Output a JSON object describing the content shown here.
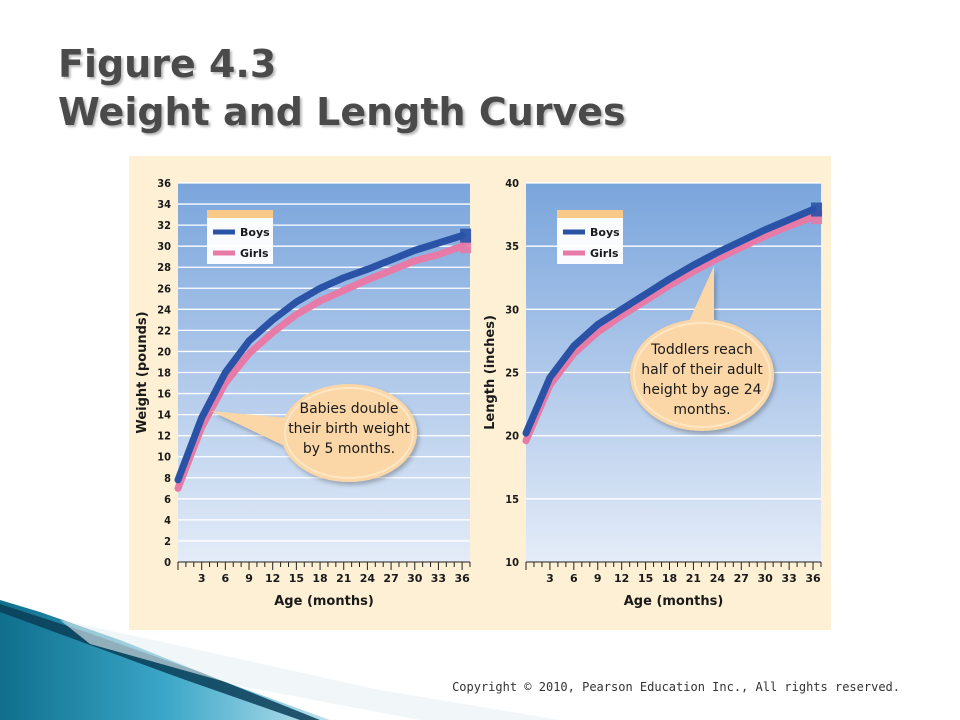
{
  "slide": {
    "title_line1": "Figure 4.3",
    "title_line2": "Weight and Length Curves",
    "copyright": "Copyright © 2010, Pearson Education Inc., All rights reserved."
  },
  "colors": {
    "boys": "#2a52a6",
    "girls": "#e77aa6",
    "plot_top": "#7aa5dc",
    "plot_bottom": "#e4ecf8",
    "panel": "#fdf0d4",
    "callout": "#fbd7a7",
    "legend_header": "#f9c987"
  },
  "chart_data": [
    {
      "type": "line",
      "xlabel": "Age (months)",
      "ylabel": "Weight (pounds)",
      "xlim": [
        0,
        37
      ],
      "ylim": [
        0,
        36
      ],
      "xticks": [
        3,
        6,
        9,
        12,
        15,
        18,
        21,
        24,
        27,
        30,
        33,
        36
      ],
      "yticks": [
        0,
        2,
        4,
        6,
        8,
        10,
        12,
        14,
        16,
        18,
        20,
        22,
        24,
        26,
        28,
        30,
        32,
        34,
        36
      ],
      "grid": true,
      "legend_position": "top-left",
      "x": [
        0,
        3,
        6,
        9,
        12,
        15,
        18,
        21,
        24,
        27,
        30,
        33,
        36
      ],
      "series": [
        {
          "name": "Boys",
          "values": [
            7.8,
            13.7,
            18.0,
            21.0,
            23.0,
            24.7,
            26.0,
            27.0,
            27.8,
            28.7,
            29.6,
            30.3,
            31.0
          ]
        },
        {
          "name": "Girls",
          "values": [
            7.0,
            12.8,
            17.0,
            19.8,
            21.8,
            23.5,
            24.8,
            25.8,
            26.8,
            27.7,
            28.6,
            29.2,
            30.0
          ]
        }
      ],
      "annotation": [
        "Babies double",
        "their birth weight",
        "by 5 months."
      ]
    },
    {
      "type": "line",
      "xlabel": "Age (months)",
      "ylabel": "Length (inches)",
      "xlim": [
        0,
        37
      ],
      "ylim": [
        10,
        40
      ],
      "xticks": [
        3,
        6,
        9,
        12,
        15,
        18,
        21,
        24,
        27,
        30,
        33,
        36
      ],
      "yticks": [
        10,
        15,
        20,
        25,
        30,
        35,
        40
      ],
      "grid": true,
      "legend_position": "top-left",
      "x": [
        0,
        3,
        6,
        9,
        12,
        15,
        18,
        21,
        24,
        27,
        30,
        33,
        36
      ],
      "series": [
        {
          "name": "Boys",
          "values": [
            20.2,
            24.6,
            27.1,
            28.8,
            30.0,
            31.2,
            32.4,
            33.5,
            34.5,
            35.4,
            36.3,
            37.1,
            37.9
          ]
        },
        {
          "name": "Girls",
          "values": [
            19.6,
            24.0,
            26.5,
            28.2,
            29.5,
            30.7,
            31.9,
            33.0,
            34.0,
            34.9,
            35.8,
            36.6,
            37.3
          ]
        }
      ],
      "annotation": [
        "Toddlers reach",
        "half of their adult",
        "height by age 24",
        "months."
      ]
    }
  ]
}
